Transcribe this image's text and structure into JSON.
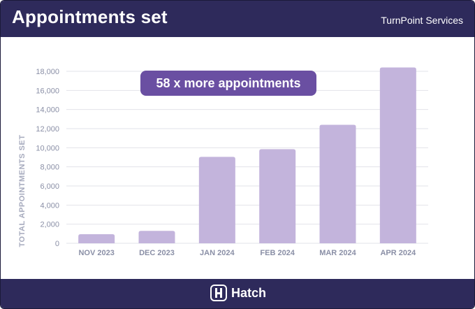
{
  "header": {
    "title": "Appointments set",
    "company": "TurnPoint Services"
  },
  "footer": {
    "brand": "Hatch",
    "logo_icon": "hatch-logo-icon"
  },
  "colors": {
    "header_bg": "#2e2a5b",
    "bar": "#c3b4dc",
    "callout_bg": "#6a4fa2",
    "grid": "#e2e3ea"
  },
  "chart_data": {
    "type": "bar",
    "title": "Appointments set",
    "ylabel": "TOTAL APPOINTMENTS SET",
    "xlabel": "",
    "categories": [
      "NOV 2023",
      "DEC 2023",
      "JAN 2024",
      "FEB 2024",
      "MAR 2024",
      "APR 2024"
    ],
    "values": [
      950,
      1300,
      9050,
      9850,
      12400,
      18400
    ],
    "ylim": [
      0,
      18000
    ],
    "yticks": [
      0,
      2000,
      4000,
      6000,
      8000,
      10000,
      12000,
      14000,
      16000,
      18000
    ],
    "ytick_labels": [
      "0",
      "2,000",
      "4,000",
      "6,000",
      "8,000",
      "10,000",
      "12,000",
      "14,000",
      "16,000",
      "18,000"
    ],
    "grid": true,
    "annotation": "58 x more appointments"
  }
}
